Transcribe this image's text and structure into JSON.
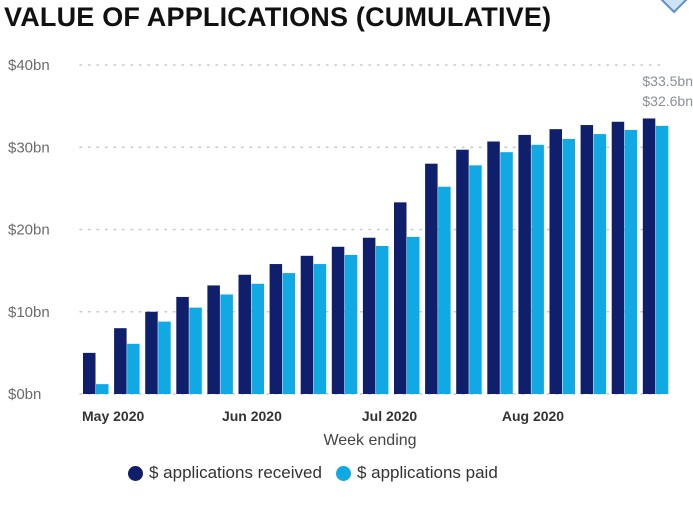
{
  "colors": {
    "received": "#0f1f6b",
    "paid": "#10a9e3",
    "grid": "#c8c8c8"
  },
  "chart_data": {
    "type": "bar",
    "title": "VALUE OF APPLICATIONS (CUMULATIVE)",
    "xlabel": "Week ending",
    "ylabel": "",
    "ylim": [
      0,
      40
    ],
    "yticks": [
      0,
      10,
      20,
      30,
      40
    ],
    "ytick_labels": [
      "$0bn",
      "$10bn",
      "$20bn",
      "$30bn",
      "$40bn"
    ],
    "grid": true,
    "month_labels": [
      {
        "label": "May 2020",
        "at_index": 0
      },
      {
        "label": "Jun 2020",
        "at_index": 4.5
      },
      {
        "label": "Jul 2020",
        "at_index": 9
      },
      {
        "label": "Aug 2020",
        "at_index": 13.5
      }
    ],
    "series": [
      {
        "name": "$ applications received",
        "values": [
          5.0,
          8.0,
          10.0,
          11.8,
          13.2,
          14.5,
          15.8,
          16.8,
          17.9,
          19.0,
          23.3,
          28.0,
          29.7,
          30.7,
          31.5,
          32.2,
          32.7,
          33.1,
          33.5
        ]
      },
      {
        "name": "$ applications paid",
        "values": [
          1.2,
          6.1,
          8.8,
          10.5,
          12.1,
          13.4,
          14.7,
          15.8,
          16.9,
          18.0,
          19.1,
          25.2,
          27.8,
          29.4,
          30.3,
          31.0,
          31.6,
          32.1,
          32.6
        ]
      }
    ],
    "data_labels": [
      "$33.5bn",
      "$32.6bn"
    ]
  },
  "legend": {
    "received_label": "$ applications received",
    "paid_label": "$ applications paid"
  }
}
